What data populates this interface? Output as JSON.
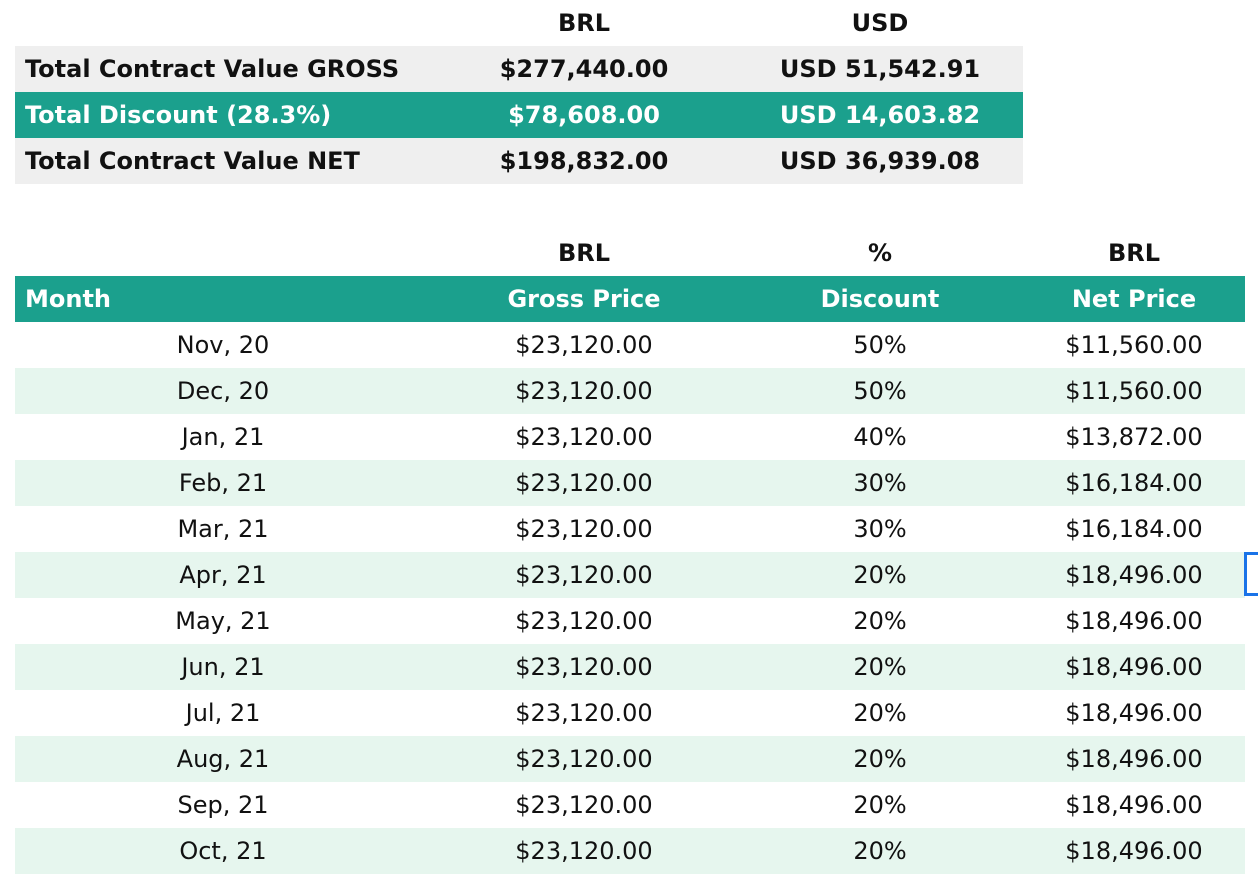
{
  "summary": {
    "col_headers": [
      "",
      "BRL",
      "USD"
    ],
    "rows": [
      {
        "label": "Total Contract Value GROSS",
        "brl": "$277,440.00",
        "usd": "USD 51,542.91",
        "style": "gray"
      },
      {
        "label": "Total Discount (28.3%)",
        "brl": "$78,608.00",
        "usd": "USD 14,603.82",
        "style": "teal"
      },
      {
        "label": "Total Contract Value NET",
        "brl": "$198,832.00",
        "usd": "USD 36,939.08",
        "style": "gray"
      }
    ]
  },
  "monthly": {
    "units": [
      "",
      "BRL",
      "%",
      "BRL"
    ],
    "headers": [
      "Month",
      "Gross Price",
      "Discount",
      "Net Price"
    ],
    "rows": [
      [
        "Nov, 20",
        "$23,120.00",
        "50%",
        "$11,560.00"
      ],
      [
        "Dec, 20",
        "$23,120.00",
        "50%",
        "$11,560.00"
      ],
      [
        "Jan, 21",
        "$23,120.00",
        "40%",
        "$13,872.00"
      ],
      [
        "Feb, 21",
        "$23,120.00",
        "30%",
        "$16,184.00"
      ],
      [
        "Mar, 21",
        "$23,120.00",
        "30%",
        "$16,184.00"
      ],
      [
        "Apr, 21",
        "$23,120.00",
        "20%",
        "$18,496.00"
      ],
      [
        "May, 21",
        "$23,120.00",
        "20%",
        "$18,496.00"
      ],
      [
        "Jun, 21",
        "$23,120.00",
        "20%",
        "$18,496.00"
      ],
      [
        "Jul, 21",
        "$23,120.00",
        "20%",
        "$18,496.00"
      ],
      [
        "Aug, 21",
        "$23,120.00",
        "20%",
        "$18,496.00"
      ],
      [
        "Sep, 21",
        "$23,120.00",
        "20%",
        "$18,496.00"
      ],
      [
        "Oct, 21",
        "$23,120.00",
        "20%",
        "$18,496.00"
      ]
    ]
  },
  "colors": {
    "accent": "#1ba08d",
    "summary_gray": "#efefef",
    "stripe": "#e6f6ee",
    "selection": "#1a73e8"
  }
}
